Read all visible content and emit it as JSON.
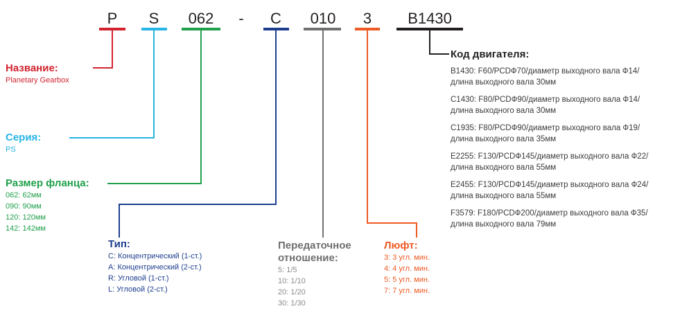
{
  "code_parts": [
    {
      "text": "P",
      "color": "#d2232f"
    },
    {
      "text": "S",
      "color": "#27b4e6"
    },
    {
      "text": "062",
      "color": "#20a04c"
    },
    {
      "text": "-",
      "color": ""
    },
    {
      "text": "C",
      "color": "#1d3e8e"
    },
    {
      "text": "010",
      "color": "#717171"
    },
    {
      "text": "3",
      "color": "#ee5a23"
    },
    {
      "text": "B1430",
      "color": "#231f20"
    }
  ],
  "name": {
    "title": "Название:",
    "items": [
      "Planetary Gearbox"
    ]
  },
  "series": {
    "title": "Серия:",
    "items": [
      "PS"
    ]
  },
  "flange": {
    "title": "Размер фланца:",
    "items": [
      "062: 62мм",
      "090: 90мм",
      "120: 120мм",
      "142: 142мм"
    ]
  },
  "type": {
    "title": "Тип:",
    "items": [
      "C: Концентрический (1-ст.)",
      "A: Концентрический (2-ст.)",
      "R: Угловой (1-ст.)",
      "L: Угловой (2-ст.)"
    ]
  },
  "ratio": {
    "title_line1": "Передаточное",
    "title_line2": "отношение:",
    "items": [
      "5: 1/5",
      "10: 1/10",
      "20: 1/20",
      "30: 1/30"
    ]
  },
  "backlash": {
    "title": "Люфт:",
    "items": [
      "3: 3 угл. мин.",
      "4: 4 угл. мин.",
      "5: 5 угл. мин.",
      "7: 7 угл. мин."
    ]
  },
  "motor": {
    "title": "Код двигателя:",
    "items": [
      [
        "B1430: F60/PCDФ70/диаметр выходного вала Ф14/",
        "длина выходного вала 30мм"
      ],
      [
        "C1430: F80/PCDФ90/диаметр выходного вала Ф14/",
        "длина выходного вала 30мм"
      ],
      [
        "C1935: F80/PCDФ90/диаметр выходного вала Ф19/",
        "длина выходного вала 35мм"
      ],
      [
        "E2255: F130/PCDФ145/диаметр выходного вала Ф22/",
        "длина выходного вала 55мм"
      ],
      [
        "E2455: F130/PCDФ145/диаметр выходного вала Ф24/",
        "длина выходного вала 55мм"
      ],
      [
        "F3579: F180/PCDФ200/диаметр выходного вала Ф35/",
        "длина выходного вала 79мм"
      ]
    ]
  }
}
